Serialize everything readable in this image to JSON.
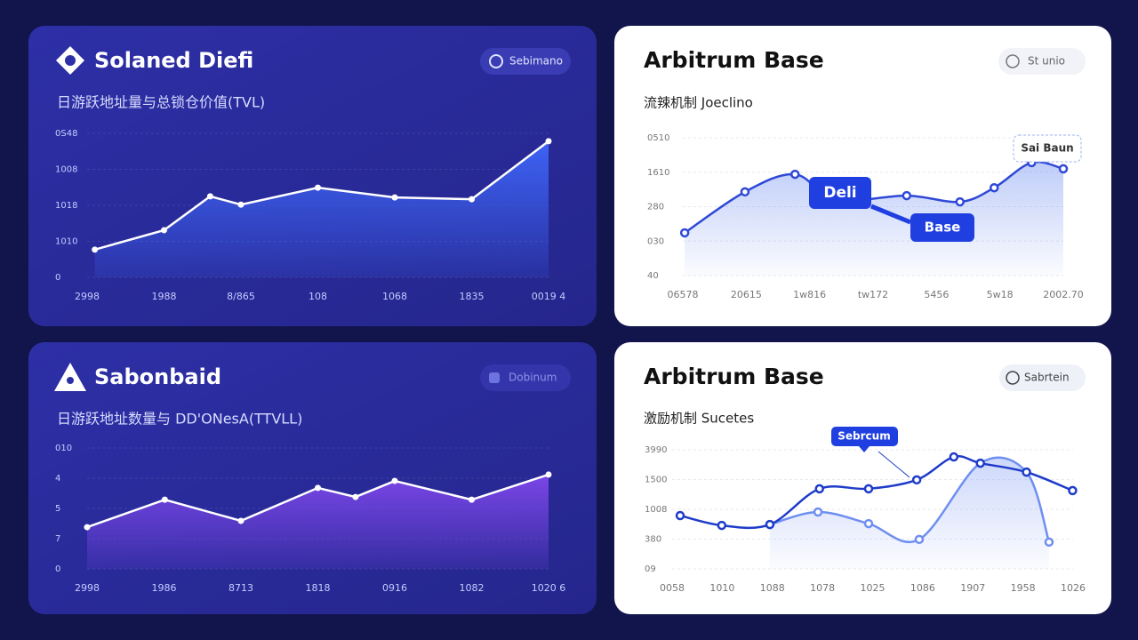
{
  "chart_data": [
    {
      "type": "area",
      "title": "Solaned Diefi",
      "badge": "Sebimano",
      "subtitle": "日游跃地址量与总锁仓价值(TVL)",
      "xlim": [
        0,
        6
      ],
      "xticks": [
        {
          "value": 0,
          "label": "2998"
        },
        {
          "value": 1,
          "label": "1988"
        },
        {
          "value": 2,
          "label": "8/865"
        },
        {
          "value": 3,
          "label": "108"
        },
        {
          "value": 4,
          "label": "1068"
        },
        {
          "value": 5,
          "label": "1835"
        },
        {
          "value": 6,
          "label": "0019 4"
        }
      ],
      "ylim": [
        0,
        4
      ],
      "yticks": [
        0,
        {
          "value": 1,
          "label": "1010"
        },
        {
          "value": 2,
          "label": "1018"
        },
        {
          "value": 3,
          "label": "1008"
        },
        {
          "value": 4,
          "label": "0S48"
        }
      ],
      "grid": true,
      "smooth": false,
      "series": [
        {
          "color": "#ffffff",
          "fill": "#3d63f5",
          "x": [
            0.1,
            1,
            1.6,
            2,
            3,
            4,
            5,
            6
          ],
          "values": [
            0.77,
            1.31,
            2.25,
            2.02,
            2.49,
            2.22,
            2.17,
            3.78
          ]
        }
      ]
    },
    {
      "type": "area",
      "title": "Arbitrum Base",
      "badge": "St unio",
      "subtitle": "流辣机制 Joeclino",
      "annotations": [
        "Deli",
        "Base",
        "Sai Baun"
      ],
      "xlim": [
        0,
        6
      ],
      "xticks": [
        {
          "value": 0,
          "label": "06578"
        },
        {
          "value": 1,
          "label": "20615"
        },
        {
          "value": 2,
          "label": "1w816"
        },
        {
          "value": 3,
          "label": "tw172"
        },
        {
          "value": 4,
          "label": "5456"
        },
        {
          "value": 5,
          "label": "5w18"
        },
        {
          "value": 6,
          "label": "2002.70"
        }
      ],
      "ylim": [
        0,
        4
      ],
      "yticks": [
        {
          "value": 0,
          "label": "40"
        },
        {
          "value": 1,
          "label": "030"
        },
        {
          "value": 2,
          "label": "280"
        },
        {
          "value": 3,
          "label": "1610"
        },
        {
          "value": 4,
          "label": "0510"
        }
      ],
      "grid": true,
      "smooth": true,
      "series": [
        {
          "color": "#2f49d6",
          "fill": "#6f8ff0",
          "x": [
            0.03,
            0.98,
            1.77,
            2.41,
            3.53,
            4.37,
            4.91,
            5.5,
            6
          ],
          "values": [
            1.24,
            2.43,
            2.94,
            2.19,
            2.32,
            2.14,
            2.55,
            3.28,
            3.1
          ]
        }
      ]
    },
    {
      "type": "area",
      "title": "Sabonbaid",
      "badge": "Dobinum",
      "subtitle": "日游跃地址数量与 DD'ONesA(TTVLL)",
      "xlim": [
        0,
        6
      ],
      "xticks": [
        {
          "value": 0,
          "label": "2998"
        },
        {
          "value": 1,
          "label": "1986"
        },
        {
          "value": 2,
          "label": "8713"
        },
        {
          "value": 3,
          "label": "1818"
        },
        {
          "value": 4,
          "label": "0916"
        },
        {
          "value": 5,
          "label": "1082"
        },
        {
          "value": 6,
          "label": "1020 6"
        }
      ],
      "ylim": [
        0,
        4
      ],
      "yticks": [
        0,
        {
          "value": 1,
          "label": "7"
        },
        {
          "value": 2,
          "label": "5"
        },
        {
          "value": 3,
          "label": "4"
        },
        {
          "value": 4,
          "label": "010"
        }
      ],
      "grid": true,
      "smooth": false,
      "series": [
        {
          "color": "#ffffff",
          "fill": "#7b46e8",
          "x": [
            0,
            1.01,
            2,
            3,
            3.49,
            4,
            5,
            6
          ],
          "values": [
            1.38,
            2.29,
            1.59,
            2.68,
            2.38,
            2.91,
            2.29,
            3.12
          ]
        }
      ]
    },
    {
      "type": "area",
      "title": "Arbitrum Base",
      "badge": "Sabrtein",
      "subtitle": "激励机制 Sucetes",
      "annotations": [
        "Sebrcum"
      ],
      "xlim": [
        0,
        8
      ],
      "xticks": [
        {
          "value": 0,
          "label": "0058"
        },
        {
          "value": 1,
          "label": "1010"
        },
        {
          "value": 2,
          "label": "1088"
        },
        {
          "value": 3,
          "label": "1078"
        },
        {
          "value": 4,
          "label": "1025"
        },
        {
          "value": 5,
          "label": "1086"
        },
        {
          "value": 6,
          "label": "1907"
        },
        {
          "value": 7,
          "label": "1958"
        },
        {
          "value": 8,
          "label": "1026"
        }
      ],
      "ylim": [
        0,
        4
      ],
      "yticks": [
        {
          "value": 0,
          "label": "09"
        },
        {
          "value": 1,
          "label": "380"
        },
        {
          "value": 2,
          "label": "1008"
        },
        {
          "value": 3,
          "label": "1500"
        },
        {
          "value": 4,
          "label": "3990"
        }
      ],
      "grid": true,
      "smooth": true,
      "series": [
        {
          "color": "#6f8ff0",
          "fill": "#8fa7f5",
          "x": [
            1.95,
            2.91,
            3.92,
            4.93,
            6.15,
            7.07,
            7.52
          ],
          "values": [
            1.49,
            1.91,
            1.52,
            0.99,
            3.55,
            3.25,
            0.9
          ]
        },
        {
          "color": "#1e3cc8",
          "x": [
            0.16,
            0.99,
            1.95,
            2.94,
            3.92,
            4.88,
            5.62,
            6.15,
            7.07,
            7.99
          ],
          "values": [
            1.79,
            1.46,
            1.49,
            2.69,
            2.69,
            2.99,
            3.76,
            3.55,
            3.25,
            2.63
          ]
        }
      ]
    }
  ]
}
